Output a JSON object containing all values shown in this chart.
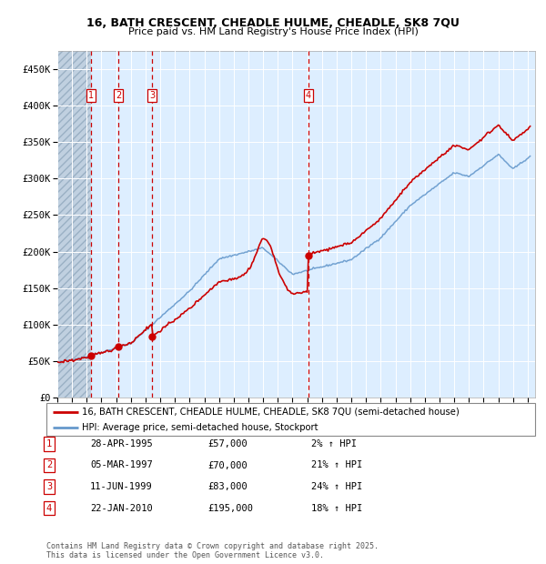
{
  "title_line1": "16, BATH CRESCENT, CHEADLE HULME, CHEADLE, SK8 7QU",
  "title_line2": "Price paid vs. HM Land Registry's House Price Index (HPI)",
  "ylim": [
    0,
    475000
  ],
  "yticks": [
    0,
    50000,
    100000,
    150000,
    200000,
    250000,
    300000,
    350000,
    400000,
    450000
  ],
  "ytick_labels": [
    "£0",
    "£50K",
    "£100K",
    "£150K",
    "£200K",
    "£250K",
    "£300K",
    "£350K",
    "£400K",
    "£450K"
  ],
  "hpi_color": "#6699cc",
  "price_color": "#cc0000",
  "bg_color": "#ddeeff",
  "sale_dates_num": [
    1995.32,
    1997.17,
    1999.44,
    2010.06
  ],
  "sale_prices": [
    57000,
    70000,
    83000,
    195000
  ],
  "sale_labels": [
    "1",
    "2",
    "3",
    "4"
  ],
  "sale_label_color": "#cc0000",
  "footer_text": "Contains HM Land Registry data © Crown copyright and database right 2025.\nThis data is licensed under the Open Government Licence v3.0.",
  "legend_line1": "16, BATH CRESCENT, CHEADLE HULME, CHEADLE, SK8 7QU (semi-detached house)",
  "legend_line2": "HPI: Average price, semi-detached house, Stockport",
  "table_entries": [
    [
      "1",
      "28-APR-1995",
      "£57,000",
      "2% ↑ HPI"
    ],
    [
      "2",
      "05-MAR-1997",
      "£70,000",
      "21% ↑ HPI"
    ],
    [
      "3",
      "11-JUN-1999",
      "£83,000",
      "24% ↑ HPI"
    ],
    [
      "4",
      "22-JAN-2010",
      "£195,000",
      "18% ↑ HPI"
    ]
  ]
}
